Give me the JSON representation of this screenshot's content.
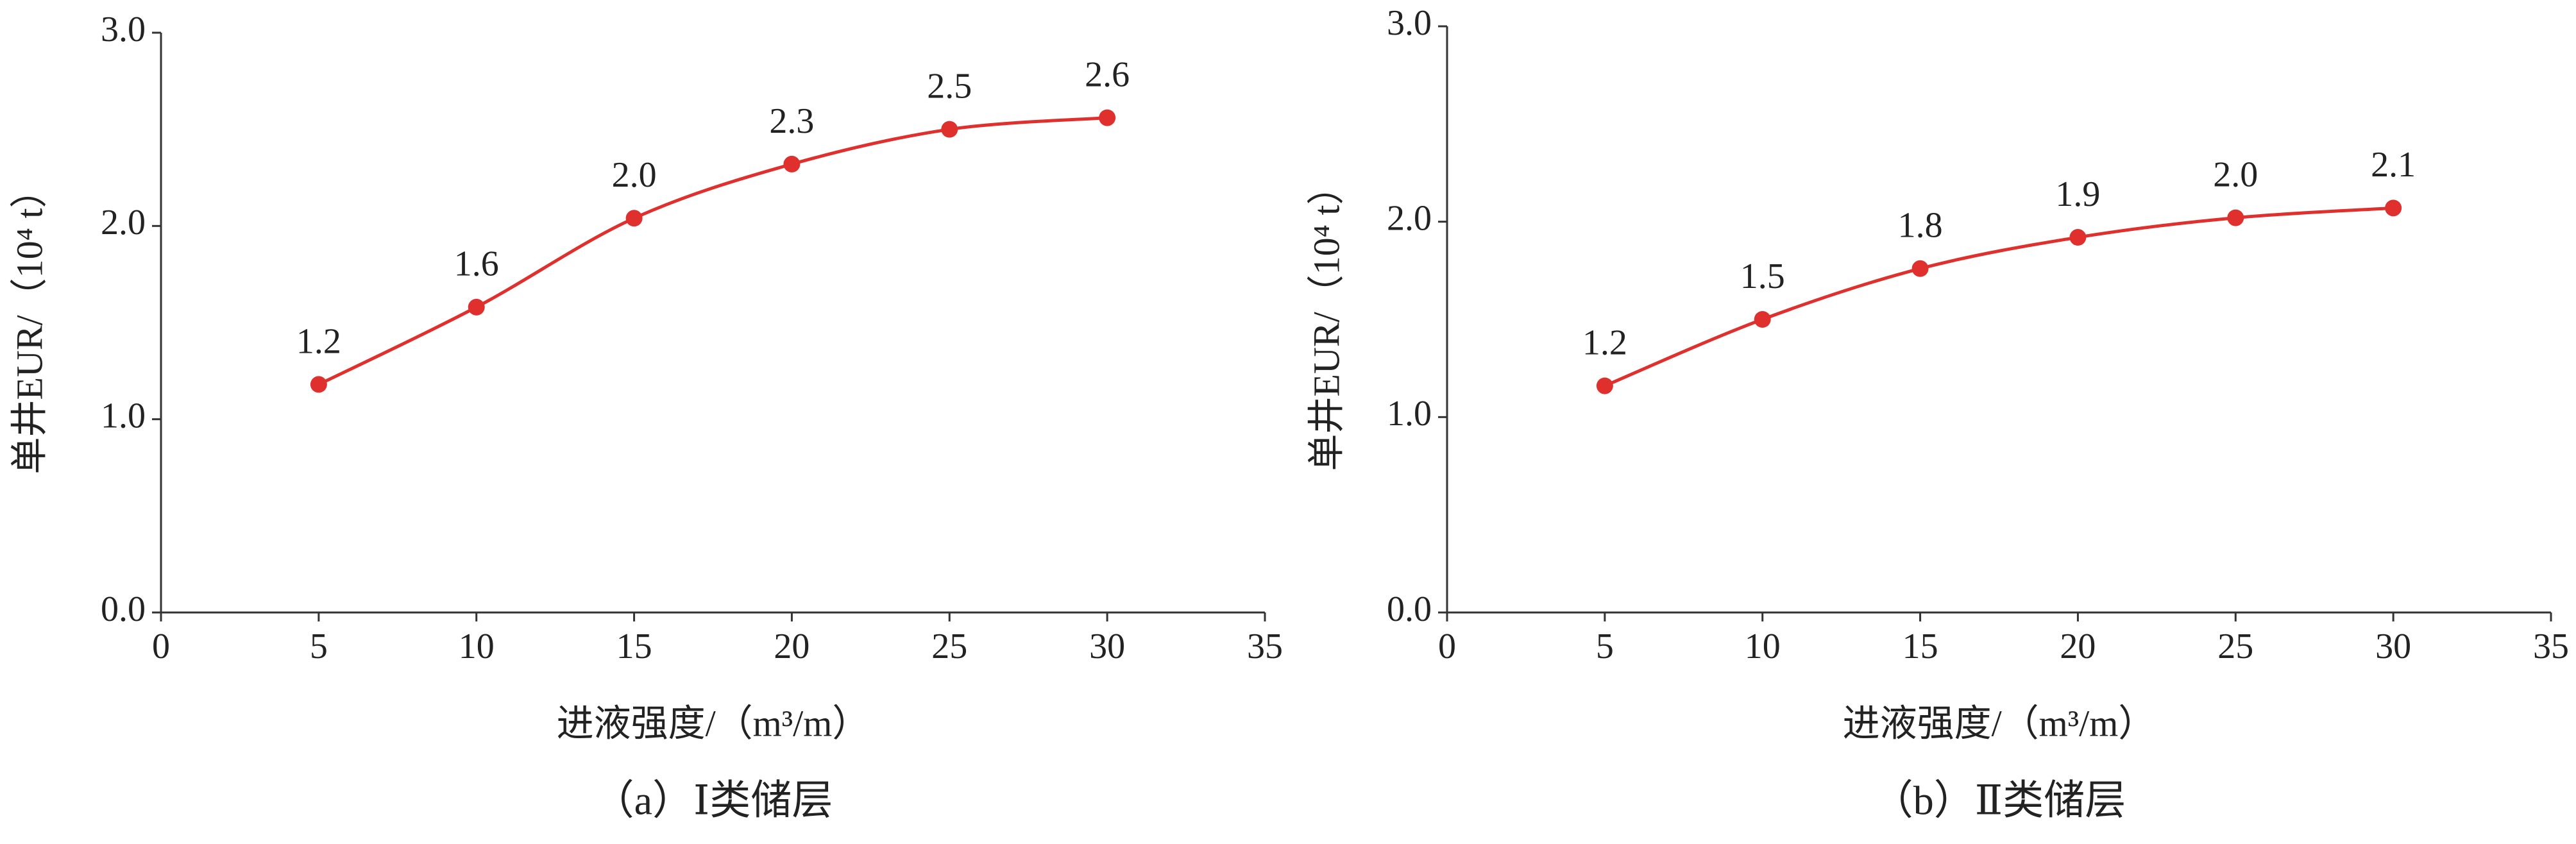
{
  "chart_data": [
    {
      "type": "line",
      "caption": "（a）Ⅰ类储层",
      "x_label": "进液强度/（m³/m）",
      "y_label": "单井EUR/（10⁴ t）",
      "x": [
        5,
        10,
        15,
        20,
        25,
        30
      ],
      "series": [
        {
          "color": "#e0302e",
          "values": [
            1.18,
            1.58,
            2.04,
            2.32,
            2.5,
            2.56
          ],
          "value_labels": [
            "1.2",
            "1.6",
            "2.0",
            "2.3",
            "2.5",
            "2.6"
          ]
        }
      ],
      "xlim": [
        0,
        35
      ],
      "xticks": [
        0,
        5,
        10,
        15,
        20,
        25,
        30,
        35
      ],
      "ylim": [
        0,
        3
      ],
      "yticks": [
        {
          "value": 0,
          "label": "0.0"
        },
        {
          "value": 1,
          "label": "1.0"
        },
        {
          "value": 2,
          "label": "2.0"
        },
        {
          "value": 3,
          "label": "3.0"
        }
      ],
      "grid": false
    },
    {
      "type": "line",
      "caption": "（b）Ⅱ类储层",
      "x_label": "进液强度/（m³/m）",
      "y_label": "单井EUR/（10⁴ t）",
      "x": [
        5,
        10,
        15,
        20,
        25,
        30
      ],
      "series": [
        {
          "color": "#e0302e",
          "values": [
            1.16,
            1.5,
            1.76,
            1.92,
            2.02,
            2.07
          ],
          "value_labels": [
            "1.2",
            "1.5",
            "1.8",
            "1.9",
            "2.0",
            "2.1"
          ]
        }
      ],
      "xlim": [
        0,
        35
      ],
      "xticks": [
        0,
        5,
        10,
        15,
        20,
        25,
        30,
        35
      ],
      "ylim": [
        0,
        3
      ],
      "yticks": [
        {
          "value": 0,
          "label": "0.0"
        },
        {
          "value": 1,
          "label": "1.0"
        },
        {
          "value": 2,
          "label": "2.0"
        },
        {
          "value": 3,
          "label": "3.0"
        }
      ],
      "grid": false
    }
  ]
}
